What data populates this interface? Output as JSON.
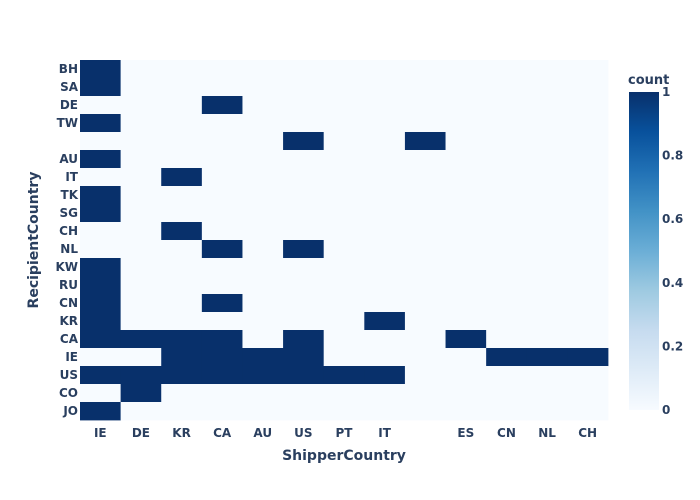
{
  "chart_data": {
    "type": "heatmap",
    "xlabel": "ShipperCountry",
    "ylabel": "RecipientCountry",
    "x_categories": [
      "IE",
      "DE",
      "KR",
      "CA",
      "AU",
      "US",
      "PT",
      "IT",
      "",
      "ES",
      "CN",
      "NL",
      "CH"
    ],
    "y_categories": [
      "BH",
      "SA",
      "DE",
      "TW",
      "",
      "AU",
      "IT",
      "TK",
      "SG",
      "CH",
      "NL",
      "KW",
      "RU",
      "CN",
      "KR",
      "CA",
      "IE",
      "US",
      "CO",
      "JO"
    ],
    "z": [
      [
        1,
        0,
        0,
        0,
        0,
        0,
        0,
        0,
        0,
        0,
        0,
        0,
        0
      ],
      [
        1,
        0,
        0,
        0,
        0,
        0,
        0,
        0,
        0,
        0,
        0,
        0,
        0
      ],
      [
        0,
        0,
        0,
        1,
        0,
        0,
        0,
        0,
        0,
        0,
        0,
        0,
        0
      ],
      [
        1,
        0,
        0,
        0,
        0,
        0,
        0,
        0,
        0,
        0,
        0,
        0,
        0
      ],
      [
        0,
        0,
        0,
        0,
        0,
        1,
        0,
        0,
        1,
        0,
        0,
        0,
        0
      ],
      [
        1,
        0,
        0,
        0,
        0,
        0,
        0,
        0,
        0,
        0,
        0,
        0,
        0
      ],
      [
        0,
        0,
        1,
        0,
        0,
        0,
        0,
        0,
        0,
        0,
        0,
        0,
        0
      ],
      [
        1,
        0,
        0,
        0,
        0,
        0,
        0,
        0,
        0,
        0,
        0,
        0,
        0
      ],
      [
        1,
        0,
        0,
        0,
        0,
        0,
        0,
        0,
        0,
        0,
        0,
        0,
        0
      ],
      [
        0,
        0,
        1,
        0,
        0,
        0,
        0,
        0,
        0,
        0,
        0,
        0,
        0
      ],
      [
        0,
        0,
        0,
        1,
        0,
        1,
        0,
        0,
        0,
        0,
        0,
        0,
        0
      ],
      [
        1,
        0,
        0,
        0,
        0,
        0,
        0,
        0,
        0,
        0,
        0,
        0,
        0
      ],
      [
        1,
        0,
        0,
        0,
        0,
        0,
        0,
        0,
        0,
        0,
        0,
        0,
        0
      ],
      [
        1,
        0,
        0,
        1,
        0,
        0,
        0,
        0,
        0,
        0,
        0,
        0,
        0
      ],
      [
        1,
        0,
        0,
        0,
        0,
        0,
        0,
        1,
        0,
        0,
        0,
        0,
        0
      ],
      [
        1,
        1,
        1,
        1,
        0,
        1,
        0,
        0,
        0,
        1,
        0,
        0,
        0
      ],
      [
        0,
        0,
        1,
        1,
        1,
        1,
        0,
        0,
        0,
        0,
        1,
        1,
        1
      ],
      [
        1,
        1,
        1,
        1,
        1,
        1,
        1,
        1,
        0,
        0,
        0,
        0,
        0
      ],
      [
        0,
        1,
        0,
        0,
        0,
        0,
        0,
        0,
        0,
        0,
        0,
        0,
        0
      ],
      [
        1,
        0,
        0,
        0,
        0,
        0,
        0,
        0,
        0,
        0,
        0,
        0,
        0
      ]
    ],
    "colorbar": {
      "title": "count",
      "range": [
        0,
        1
      ],
      "ticks": [
        "0",
        "0.2",
        "0.4",
        "0.6",
        "0.8",
        "1"
      ],
      "colors": {
        "low": "#f7fbff",
        "high": "#08306b"
      }
    }
  }
}
